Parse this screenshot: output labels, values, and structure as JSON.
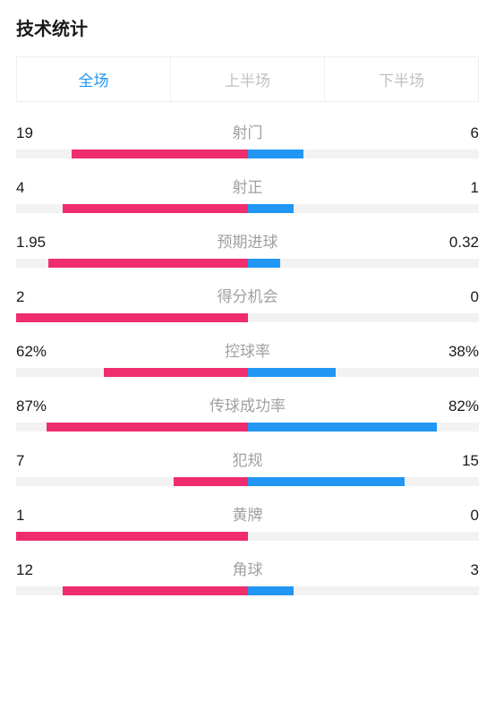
{
  "title": "技术统计",
  "tabs": [
    {
      "label": "全场",
      "active": true
    },
    {
      "label": "上半场",
      "active": false
    },
    {
      "label": "下半场",
      "active": false
    }
  ],
  "colors": {
    "left_bar": "#ef2d6e",
    "right_bar": "#2196f3",
    "track": "#f2f2f2",
    "stat_name": "#a0a0a0",
    "value": "#1a1a1a",
    "tab_active": "#2196f3",
    "tab_inactive": "#c0c0c0"
  },
  "stats": [
    {
      "name": "射门",
      "left_value": "19",
      "right_value": "6",
      "left_pct": 76,
      "right_pct": 24
    },
    {
      "name": "射正",
      "left_value": "4",
      "right_value": "1",
      "left_pct": 80,
      "right_pct": 20
    },
    {
      "name": "预期进球",
      "left_value": "1.95",
      "right_value": "0.32",
      "left_pct": 86,
      "right_pct": 14
    },
    {
      "name": "得分机会",
      "left_value": "2",
      "right_value": "0",
      "left_pct": 100,
      "right_pct": 0
    },
    {
      "name": "控球率",
      "left_value": "62%",
      "right_value": "38%",
      "left_pct": 62,
      "right_pct": 38
    },
    {
      "name": "传球成功率",
      "left_value": "87%",
      "right_value": "82%",
      "left_pct": 87,
      "right_pct": 82
    },
    {
      "name": "犯规",
      "left_value": "7",
      "right_value": "15",
      "left_pct": 32,
      "right_pct": 68
    },
    {
      "name": "黄牌",
      "left_value": "1",
      "right_value": "0",
      "left_pct": 100,
      "right_pct": 0
    },
    {
      "name": "角球",
      "left_value": "12",
      "right_value": "3",
      "left_pct": 80,
      "right_pct": 20
    }
  ]
}
